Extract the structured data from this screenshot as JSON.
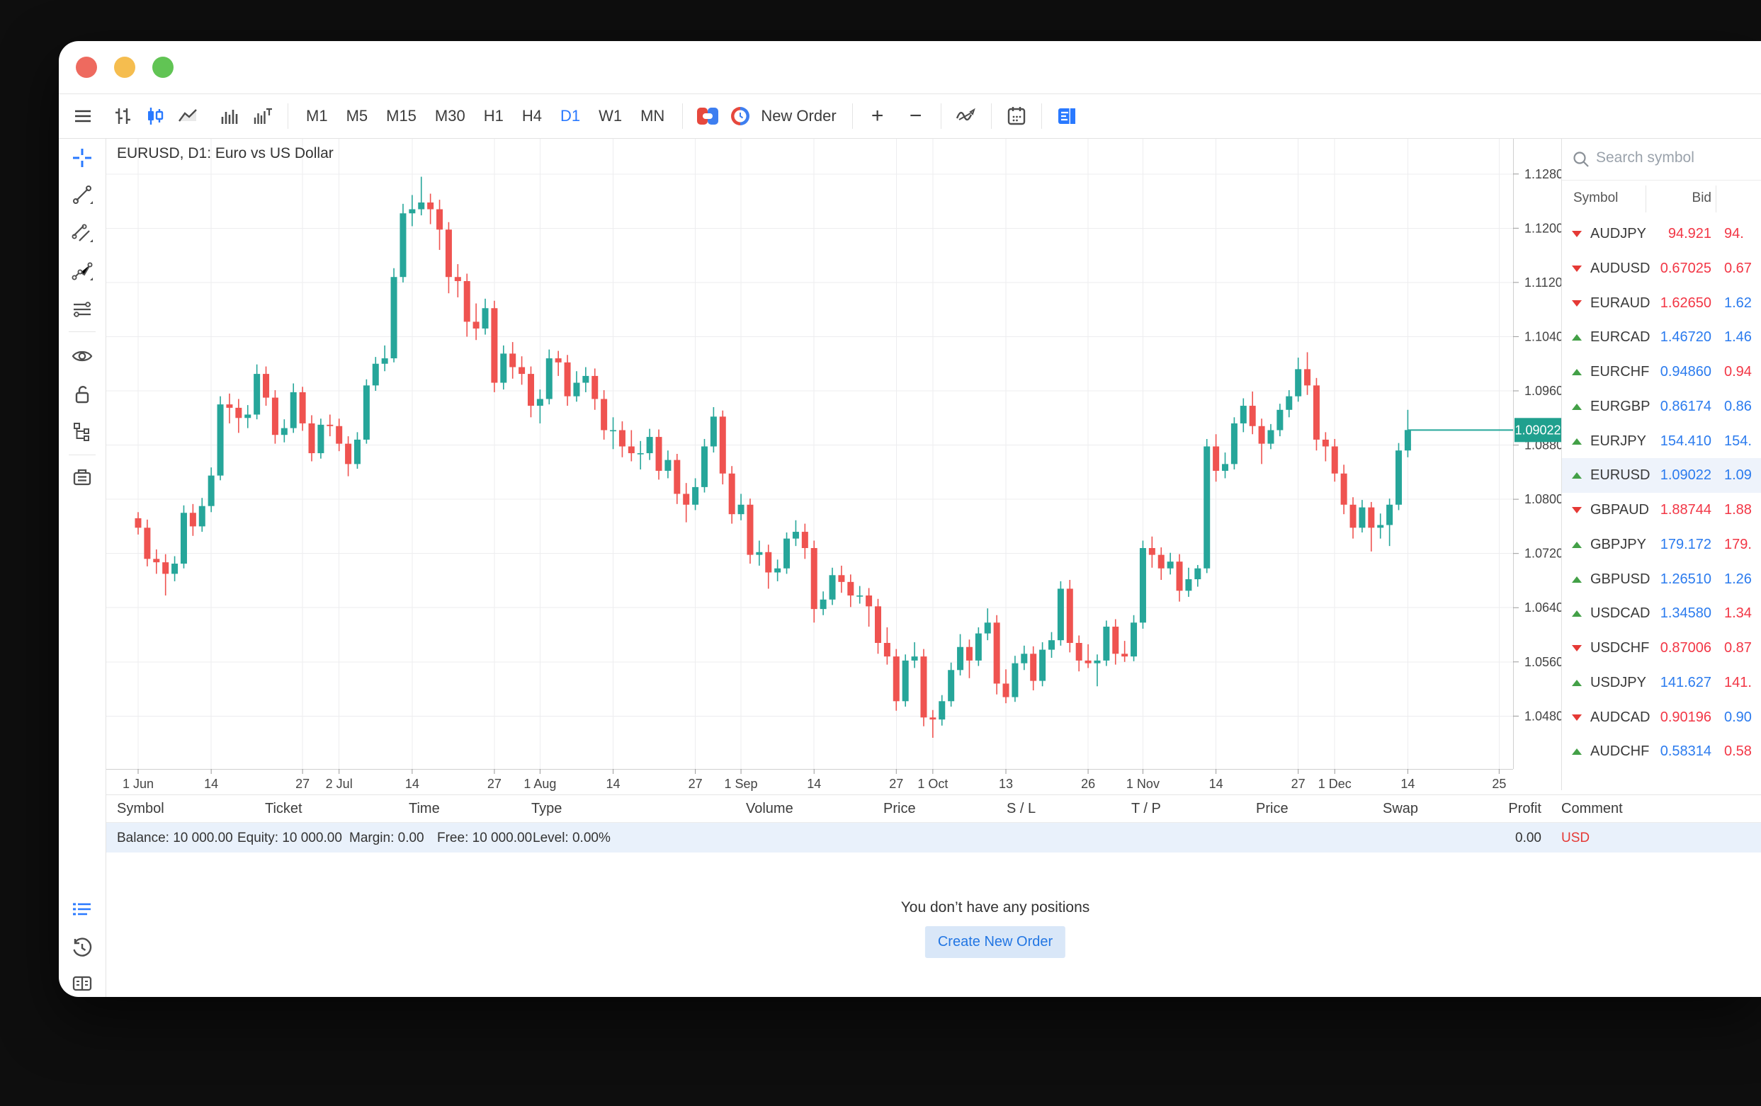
{
  "colors": {
    "accent_blue": "#2979ff",
    "candle_up": "#26a69a",
    "candle_down": "#ef5350",
    "quote_blue": "#2b7bee",
    "quote_red": "#f23645",
    "arrow_up": "#43a047",
    "arrow_down": "#e53935",
    "price_badge": "#20a08e",
    "balance_row_bg": "#e9f1fb",
    "traffic_close": "#ee6a5f",
    "traffic_min": "#f5bd4f",
    "traffic_zoom": "#61c454"
  },
  "toolbar": {
    "timeframes": [
      "M1",
      "M5",
      "M15",
      "M30",
      "H1",
      "H4",
      "D1",
      "W1",
      "MN"
    ],
    "active_timeframe": "D1",
    "new_order_label": "New Order",
    "zoom_in": "+",
    "zoom_out": "−"
  },
  "chart": {
    "title": "EURUSD, D1: Euro vs US Dollar",
    "current_price": "1.09022"
  },
  "chart_data": {
    "type": "candlestick",
    "symbol": "EURUSD",
    "timeframe": "D1",
    "ylim": [
      1.0402,
      1.1332
    ],
    "grid": true,
    "price_ticks": [
      "1.12800",
      "1.12000",
      "1.11200",
      "1.10400",
      "1.09600",
      "1.08800",
      "1.08000",
      "1.07200",
      "1.06400",
      "1.05600",
      "1.04800"
    ],
    "date_ticks": [
      {
        "i": 0,
        "label": "1 Jun"
      },
      {
        "i": 8,
        "label": "14"
      },
      {
        "i": 18,
        "label": "27"
      },
      {
        "i": 22,
        "label": "2 Jul"
      },
      {
        "i": 30,
        "label": "14"
      },
      {
        "i": 39,
        "label": "27"
      },
      {
        "i": 44,
        "label": "1 Aug"
      },
      {
        "i": 52,
        "label": "14"
      },
      {
        "i": 61,
        "label": "27"
      },
      {
        "i": 66,
        "label": "1 Sep"
      },
      {
        "i": 74,
        "label": "14"
      },
      {
        "i": 83,
        "label": "27"
      },
      {
        "i": 87,
        "label": "1 Oct"
      },
      {
        "i": 95,
        "label": "13"
      },
      {
        "i": 104,
        "label": "26"
      },
      {
        "i": 110,
        "label": "1 Nov"
      },
      {
        "i": 118,
        "label": "14"
      },
      {
        "i": 127,
        "label": "27"
      },
      {
        "i": 131,
        "label": "1 Dec"
      },
      {
        "i": 139,
        "label": "14"
      },
      {
        "i": 149,
        "label": "25"
      }
    ],
    "current_price": 1.09022,
    "candles": [
      [
        1.0772,
        1.0781,
        1.0748,
        1.0758
      ],
      [
        1.0758,
        1.077,
        1.0701,
        1.0712
      ],
      [
        1.0712,
        1.0726,
        1.069,
        1.0707
      ],
      [
        1.0707,
        1.0719,
        1.0658,
        1.069
      ],
      [
        1.069,
        1.0716,
        1.0679,
        1.0705
      ],
      [
        1.0705,
        1.0791,
        1.0698,
        1.078
      ],
      [
        1.078,
        1.0793,
        1.0746,
        1.076
      ],
      [
        1.076,
        1.0802,
        1.0752,
        1.079
      ],
      [
        1.079,
        1.0847,
        1.0781,
        1.0835
      ],
      [
        1.0835,
        1.0952,
        1.0828,
        1.094
      ],
      [
        1.094,
        1.0956,
        1.0912,
        1.0935
      ],
      [
        1.0935,
        1.0948,
        1.0898,
        1.092
      ],
      [
        1.092,
        1.0939,
        1.0905,
        1.0925
      ],
      [
        1.0925,
        1.0999,
        1.0918,
        1.0985
      ],
      [
        1.0985,
        1.0996,
        1.0938,
        1.095
      ],
      [
        1.095,
        1.0961,
        1.0882,
        1.0895
      ],
      [
        1.0895,
        1.0918,
        1.0884,
        1.0905
      ],
      [
        1.0905,
        1.0971,
        1.0898,
        1.0958
      ],
      [
        1.0958,
        1.0966,
        1.0901,
        1.0912
      ],
      [
        1.0912,
        1.0924,
        1.0856,
        1.0868
      ],
      [
        1.0868,
        1.0919,
        1.086,
        1.091
      ],
      [
        1.091,
        1.0925,
        1.0893,
        1.0908
      ],
      [
        1.0908,
        1.0919,
        1.0871,
        1.0882
      ],
      [
        1.0882,
        1.0893,
        1.0834,
        1.0852
      ],
      [
        1.0852,
        1.0899,
        1.0845,
        1.0888
      ],
      [
        1.0888,
        1.0977,
        1.0882,
        1.0968
      ],
      [
        1.0968,
        1.101,
        1.096,
        1.1
      ],
      [
        1.1,
        1.1027,
        1.0989,
        1.1008
      ],
      [
        1.1008,
        1.1141,
        1.1002,
        1.1128
      ],
      [
        1.1128,
        1.1236,
        1.112,
        1.1222
      ],
      [
        1.1222,
        1.1249,
        1.1203,
        1.1228
      ],
      [
        1.1228,
        1.1276,
        1.1219,
        1.1238
      ],
      [
        1.1238,
        1.1251,
        1.1206,
        1.1228
      ],
      [
        1.1228,
        1.1242,
        1.1168,
        1.1198
      ],
      [
        1.1198,
        1.1209,
        1.1104,
        1.1128
      ],
      [
        1.1128,
        1.1147,
        1.1098,
        1.1122
      ],
      [
        1.1122,
        1.1133,
        1.104,
        1.1062
      ],
      [
        1.1062,
        1.1089,
        1.1035,
        1.1052
      ],
      [
        1.1052,
        1.1096,
        1.1043,
        1.1082
      ],
      [
        1.1082,
        1.1093,
        1.0958,
        1.0972
      ],
      [
        1.0972,
        1.1027,
        1.0962,
        1.1015
      ],
      [
        1.1015,
        1.1032,
        1.0978,
        1.0995
      ],
      [
        1.0995,
        1.1011,
        1.0969,
        1.0985
      ],
      [
        1.0985,
        1.0996,
        1.0921,
        1.0938
      ],
      [
        1.0938,
        1.0962,
        1.0912,
        1.0948
      ],
      [
        1.0948,
        1.1021,
        1.094,
        1.1008
      ],
      [
        1.1008,
        1.1019,
        1.0982,
        1.1002
      ],
      [
        1.1002,
        1.1013,
        1.0938,
        1.0952
      ],
      [
        1.0952,
        1.0989,
        1.0944,
        1.0972
      ],
      [
        1.0972,
        1.0995,
        1.0958,
        1.0982
      ],
      [
        1.0982,
        1.0993,
        1.0932,
        1.0948
      ],
      [
        1.0948,
        1.0961,
        1.0888,
        1.0902
      ],
      [
        1.0902,
        1.0921,
        1.0874,
        1.0902
      ],
      [
        1.0902,
        1.0915,
        1.0862,
        1.0878
      ],
      [
        1.0878,
        1.0902,
        1.0856,
        1.0868
      ],
      [
        1.0868,
        1.0886,
        1.0844,
        1.0868
      ],
      [
        1.0868,
        1.0904,
        1.0858,
        1.0892
      ],
      [
        1.0892,
        1.0903,
        1.0829,
        1.0842
      ],
      [
        1.0842,
        1.0872,
        1.0831,
        1.0858
      ],
      [
        1.0858,
        1.0867,
        1.0793,
        1.0808
      ],
      [
        1.0808,
        1.0824,
        1.0766,
        1.0792
      ],
      [
        1.0792,
        1.0831,
        1.0784,
        1.0818
      ],
      [
        1.0818,
        1.0889,
        1.081,
        1.0878
      ],
      [
        1.0878,
        1.0936,
        1.0869,
        1.0922
      ],
      [
        1.0922,
        1.0931,
        1.0822,
        1.0838
      ],
      [
        1.0838,
        1.0849,
        1.0764,
        1.0778
      ],
      [
        1.0778,
        1.0808,
        1.0769,
        1.0792
      ],
      [
        1.0792,
        1.0801,
        1.0705,
        1.0718
      ],
      [
        1.0718,
        1.0739,
        1.0702,
        1.0722
      ],
      [
        1.0722,
        1.0733,
        1.0668,
        1.0692
      ],
      [
        1.0692,
        1.0711,
        1.0679,
        1.0698
      ],
      [
        1.0698,
        1.0751,
        1.069,
        1.0742
      ],
      [
        1.0742,
        1.0769,
        1.0731,
        1.0752
      ],
      [
        1.0752,
        1.0764,
        1.0712,
        1.0728
      ],
      [
        1.0728,
        1.0739,
        1.0618,
        1.0638
      ],
      [
        1.0638,
        1.0664,
        1.0629,
        1.0652
      ],
      [
        1.0652,
        1.0699,
        1.0644,
        1.0688
      ],
      [
        1.0688,
        1.0702,
        1.0662,
        1.0678
      ],
      [
        1.0678,
        1.0689,
        1.0641,
        1.0658
      ],
      [
        1.0658,
        1.0672,
        1.0646,
        1.0658
      ],
      [
        1.0658,
        1.0669,
        1.0612,
        1.0642
      ],
      [
        1.0642,
        1.0653,
        1.0572,
        1.0588
      ],
      [
        1.0588,
        1.0611,
        1.0556,
        1.0568
      ],
      [
        1.0568,
        1.0579,
        1.0488,
        1.0502
      ],
      [
        1.0502,
        1.0571,
        1.0494,
        1.0562
      ],
      [
        1.0562,
        1.0589,
        1.0551,
        1.0568
      ],
      [
        1.0568,
        1.0579,
        1.0465,
        1.0478
      ],
      [
        1.0478,
        1.0489,
        1.0448,
        1.0475
      ],
      [
        1.0475,
        1.0511,
        1.0466,
        1.0502
      ],
      [
        1.0502,
        1.0559,
        1.0494,
        1.0548
      ],
      [
        1.0548,
        1.0601,
        1.054,
        1.0582
      ],
      [
        1.0582,
        1.0593,
        1.0536,
        1.0562
      ],
      [
        1.0562,
        1.0611,
        1.0554,
        1.0602
      ],
      [
        1.0602,
        1.0639,
        1.0592,
        1.0618
      ],
      [
        1.0618,
        1.0629,
        1.0512,
        1.0528
      ],
      [
        1.0528,
        1.0549,
        1.0499,
        1.0508
      ],
      [
        1.0508,
        1.0569,
        1.0501,
        1.0558
      ],
      [
        1.0558,
        1.0584,
        1.0548,
        1.0572
      ],
      [
        1.0572,
        1.0583,
        1.0518,
        1.0532
      ],
      [
        1.0532,
        1.0589,
        1.0524,
        1.0578
      ],
      [
        1.0578,
        1.0604,
        1.0566,
        1.0592
      ],
      [
        1.0592,
        1.0679,
        1.0584,
        1.0668
      ],
      [
        1.0668,
        1.0681,
        1.0574,
        1.0588
      ],
      [
        1.0588,
        1.0599,
        1.0546,
        1.0562
      ],
      [
        1.0562,
        1.0586,
        1.0551,
        1.0558
      ],
      [
        1.0558,
        1.0571,
        1.0524,
        1.0562
      ],
      [
        1.0562,
        1.0621,
        1.0554,
        1.0612
      ],
      [
        1.0612,
        1.0623,
        1.0556,
        1.0572
      ],
      [
        1.0572,
        1.0591,
        1.056,
        1.0568
      ],
      [
        1.0568,
        1.0629,
        1.0561,
        1.0618
      ],
      [
        1.0618,
        1.0739,
        1.0609,
        1.0728
      ],
      [
        1.0728,
        1.0745,
        1.0699,
        1.0718
      ],
      [
        1.0718,
        1.0729,
        1.0681,
        1.0698
      ],
      [
        1.0698,
        1.0721,
        1.0689,
        1.0708
      ],
      [
        1.0708,
        1.0719,
        1.0649,
        1.0665
      ],
      [
        1.0665,
        1.0699,
        1.0656,
        1.0682
      ],
      [
        1.0682,
        1.0703,
        1.0671,
        1.0698
      ],
      [
        1.0698,
        1.0889,
        1.0691,
        1.0878
      ],
      [
        1.0878,
        1.0896,
        1.0826,
        1.0842
      ],
      [
        1.0842,
        1.0869,
        1.0831,
        1.0852
      ],
      [
        1.0852,
        1.0921,
        1.0844,
        1.0912
      ],
      [
        1.0912,
        1.0949,
        1.0899,
        1.0938
      ],
      [
        1.0938,
        1.0959,
        1.0896,
        1.0908
      ],
      [
        1.0908,
        1.0919,
        1.0852,
        1.0882
      ],
      [
        1.0882,
        1.0911,
        1.0874,
        1.0902
      ],
      [
        1.0902,
        1.0941,
        1.0893,
        1.0932
      ],
      [
        1.0932,
        1.0961,
        1.0921,
        1.0952
      ],
      [
        1.0952,
        1.1009,
        1.0944,
        1.0992
      ],
      [
        1.0992,
        1.1017,
        1.0954,
        1.0968
      ],
      [
        1.0968,
        1.0979,
        1.0872,
        1.0888
      ],
      [
        1.0888,
        1.0899,
        1.0856,
        1.0878
      ],
      [
        1.0878,
        1.0889,
        1.0826,
        1.0838
      ],
      [
        1.0838,
        1.0851,
        1.0778,
        1.0792
      ],
      [
        1.0792,
        1.0803,
        1.0742,
        1.0758
      ],
      [
        1.0758,
        1.0799,
        1.0751,
        1.0788
      ],
      [
        1.0788,
        1.0796,
        1.0723,
        1.0758
      ],
      [
        1.0758,
        1.0779,
        1.0742,
        1.0762
      ],
      [
        1.0762,
        1.0801,
        1.0731,
        1.0792
      ],
      [
        1.0792,
        1.0883,
        1.0784,
        1.0872
      ],
      [
        1.0872,
        1.0932,
        1.0862,
        1.09022
      ]
    ]
  },
  "market_watch": {
    "search_placeholder": "Search symbol",
    "columns": [
      "Symbol",
      "Bid"
    ],
    "rows": [
      {
        "dir": "down",
        "symbol": "AUDJPY",
        "bid": "94.921",
        "bid_color": "red",
        "ask": "94.",
        "ask_color": "red",
        "selected": false
      },
      {
        "dir": "down",
        "symbol": "AUDUSD",
        "bid": "0.67025",
        "bid_color": "red",
        "ask": "0.67",
        "ask_color": "red",
        "selected": false
      },
      {
        "dir": "down",
        "symbol": "EURAUD",
        "bid": "1.62650",
        "bid_color": "red",
        "ask": "1.62",
        "ask_color": "blue",
        "selected": false
      },
      {
        "dir": "up",
        "symbol": "EURCAD",
        "bid": "1.46720",
        "bid_color": "blue",
        "ask": "1.46",
        "ask_color": "blue",
        "selected": false
      },
      {
        "dir": "up",
        "symbol": "EURCHF",
        "bid": "0.94860",
        "bid_color": "blue",
        "ask": "0.94",
        "ask_color": "red",
        "selected": false
      },
      {
        "dir": "up",
        "symbol": "EURGBP",
        "bid": "0.86174",
        "bid_color": "blue",
        "ask": "0.86",
        "ask_color": "blue",
        "selected": false
      },
      {
        "dir": "up",
        "symbol": "EURJPY",
        "bid": "154.410",
        "bid_color": "blue",
        "ask": "154.",
        "ask_color": "blue",
        "selected": false
      },
      {
        "dir": "up",
        "symbol": "EURUSD",
        "bid": "1.09022",
        "bid_color": "blue",
        "ask": "1.09",
        "ask_color": "blue",
        "selected": true
      },
      {
        "dir": "down",
        "symbol": "GBPAUD",
        "bid": "1.88744",
        "bid_color": "red",
        "ask": "1.88",
        "ask_color": "red",
        "selected": false
      },
      {
        "dir": "up",
        "symbol": "GBPJPY",
        "bid": "179.172",
        "bid_color": "blue",
        "ask": "179.",
        "ask_color": "red",
        "selected": false
      },
      {
        "dir": "up",
        "symbol": "GBPUSD",
        "bid": "1.26510",
        "bid_color": "blue",
        "ask": "1.26",
        "ask_color": "blue",
        "selected": false
      },
      {
        "dir": "up",
        "symbol": "USDCAD",
        "bid": "1.34580",
        "bid_color": "blue",
        "ask": "1.34",
        "ask_color": "red",
        "selected": false
      },
      {
        "dir": "down",
        "symbol": "USDCHF",
        "bid": "0.87006",
        "bid_color": "red",
        "ask": "0.87",
        "ask_color": "red",
        "selected": false
      },
      {
        "dir": "up",
        "symbol": "USDJPY",
        "bid": "141.627",
        "bid_color": "blue",
        "ask": "141.",
        "ask_color": "red",
        "selected": false
      },
      {
        "dir": "down",
        "symbol": "AUDCAD",
        "bid": "0.90196",
        "bid_color": "red",
        "ask": "0.90",
        "ask_color": "blue",
        "selected": false
      },
      {
        "dir": "up",
        "symbol": "AUDCHF",
        "bid": "0.58314",
        "bid_color": "blue",
        "ask": "0.58",
        "ask_color": "red",
        "selected": false
      }
    ]
  },
  "positions": {
    "columns": [
      "Symbol",
      "Ticket",
      "Time",
      "Type",
      "Volume",
      "Price",
      "S / L",
      "T / P",
      "Price",
      "Swap",
      "Profit",
      "Comment"
    ],
    "balance_items": [
      "Balance: 10 000.00",
      "Equity: 10 000.00",
      "Margin: 0.00",
      "Free: 10 000.00",
      "Level: 0.00%"
    ],
    "profit_total": "0.00",
    "currency": "USD",
    "empty_message": "You don’t have any positions",
    "empty_button": "Create New Order"
  }
}
